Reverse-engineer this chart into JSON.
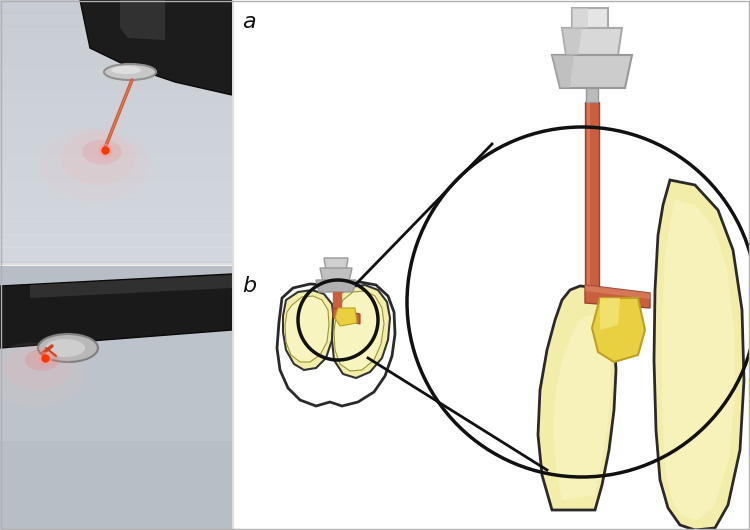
{
  "bg_color": "#ffffff",
  "label_a": "a",
  "label_b": "b",
  "label_fontsize": 16,
  "photo_a_bg_top": "#d0d5dc",
  "photo_a_bg_bot": "#c8cdd4",
  "photo_b_bg": "#b5bcc4",
  "tooth_fill": "#f5f0a8",
  "tooth_stroke": "#2a2a2a",
  "laser_color": "#c86040",
  "probe_gray_light": "#d8d8d8",
  "probe_gray_mid": "#b8b8b8",
  "probe_gray_dark": "#909090",
  "magnify_circle_color": "#111111",
  "tooth_inner_fill": "#e8dc60",
  "yellow_enamel": "#f2eeaa",
  "yellow_enamel2": "#f8f4c0",
  "border_color": "#c0c0c0",
  "lw_main": 2.0,
  "lw_thick": 2.5
}
